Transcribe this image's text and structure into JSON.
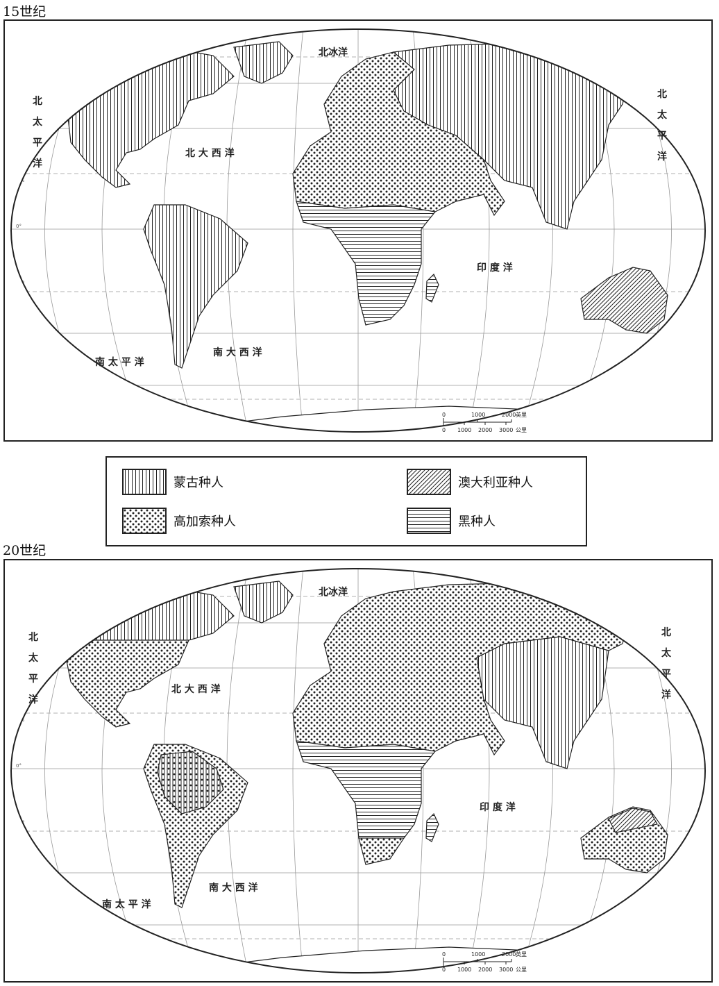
{
  "maps": [
    {
      "title": "15世纪",
      "oceans": {
        "arctic": "北冰洋",
        "north_pacific_left": [
          "北",
          "太",
          "平",
          "洋"
        ],
        "north_pacific_right": [
          "北",
          "太",
          "平",
          "洋"
        ],
        "north_atlantic": "北 大 西 洋",
        "indian": "印 度 洋",
        "south_pacific": "南 太 平 洋",
        "south_atlantic": "南 大 西 洋"
      },
      "regions": {
        "north_america": "mongoloid",
        "central_america": "mongoloid",
        "south_america": "mongoloid",
        "europe": "caucasoid",
        "north_africa": "caucasoid",
        "sub_saharan_africa": "negroid",
        "asia": "mongoloid",
        "australia": "australoid"
      }
    },
    {
      "title": "20世纪",
      "oceans": {
        "arctic": "北冰洋",
        "north_pacific_left": [
          "北",
          "太",
          "平",
          "洋"
        ],
        "north_pacific_right": [
          "北",
          "太",
          "平",
          "洋"
        ],
        "north_atlantic": "北 大 西 洋",
        "indian": "印 度 洋",
        "south_pacific": "南 太 平 洋",
        "south_atlantic": "南 大 西 洋"
      },
      "regions": {
        "north_america": "caucasoid",
        "central_america": "caucasoid",
        "south_america": "mixed mongoloid/caucasoid",
        "europe": "caucasoid",
        "north_africa": "caucasoid",
        "sub_saharan_africa": "negroid",
        "asia": "mongoloid",
        "australia": "caucasoid"
      }
    }
  ],
  "scale_bar": {
    "top_ticks": [
      "0",
      "1000",
      "2000"
    ],
    "top_unit": "英里",
    "bottom_ticks": [
      "0",
      "1000",
      "2000",
      "3000"
    ],
    "bottom_unit": "公里"
  },
  "legend": {
    "items": [
      {
        "pattern": "vertical-lines",
        "label": "蒙古种人"
      },
      {
        "pattern": "diagonal-lines",
        "label": "澳大利亚种人"
      },
      {
        "pattern": "dots",
        "label": "高加索种人"
      },
      {
        "pattern": "horizontal-lines",
        "label": "黑种人"
      }
    ]
  },
  "colors": {
    "ink": "#222222",
    "grid": "#999999",
    "paper": "#ffffff"
  }
}
